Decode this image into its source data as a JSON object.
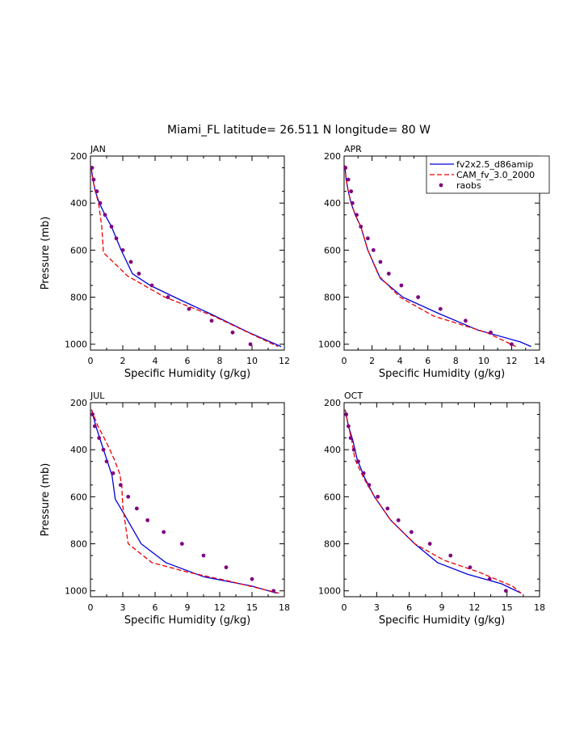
{
  "figure_title": "Miami_FL  latitude= 26.511 N longitude= 80 W",
  "legend": {
    "placement": "top-right of APR panel",
    "entries": [
      {
        "label": "fv2x2.5_d86amip",
        "color": "#0000dd",
        "style": "solid"
      },
      {
        "label": "CAM_fv_3.0_2000",
        "color": "#ee0000",
        "style": "dashed"
      },
      {
        "label": "raobs",
        "color": "#800080",
        "style": "dots"
      }
    ]
  },
  "chart_data": [
    {
      "type": "line",
      "panel": "JAN",
      "title": "JAN",
      "xlabel": "Specific Humidity (g/kg)",
      "ylabel": "Pressure (mb)",
      "xlim": [
        0,
        12
      ],
      "ylim": [
        1025,
        200
      ],
      "xticks": [
        "0",
        "2",
        "4",
        "6",
        "8",
        "10",
        "12"
      ],
      "yticks": [
        "200",
        "400",
        "600",
        "800",
        "1000"
      ],
      "series": [
        {
          "name": "fv2x2.5_d86amip",
          "style": "solid",
          "x": [
            0.05,
            0.15,
            0.3,
            0.55,
            0.9,
            1.3,
            1.9,
            2.6,
            3.7,
            5.2,
            7.4,
            9.8,
            11.8
          ],
          "y": [
            250,
            300,
            350,
            400,
            450,
            500,
            600,
            700,
            750,
            800,
            870,
            950,
            1010
          ]
        },
        {
          "name": "CAM_fv_3.0_2000",
          "style": "dashed",
          "x": [
            0.05,
            0.15,
            0.3,
            0.5,
            0.7,
            0.8,
            2.3,
            4.6,
            7.6,
            11.6
          ],
          "y": [
            250,
            300,
            350,
            400,
            500,
            610,
            710,
            800,
            880,
            1010
          ]
        },
        {
          "name": "raobs",
          "style": "dots",
          "x": [
            0.1,
            0.2,
            0.4,
            0.6,
            0.9,
            1.3,
            1.6,
            2.0,
            2.5,
            3.0,
            3.8,
            4.8,
            6.1,
            7.5,
            8.8,
            9.9
          ],
          "y": [
            250,
            300,
            350,
            400,
            450,
            500,
            550,
            600,
            650,
            700,
            750,
            800,
            850,
            900,
            950,
            1000
          ]
        }
      ]
    },
    {
      "type": "line",
      "panel": "APR",
      "title": "APR",
      "xlabel": "Specific Humidity (g/kg)",
      "ylabel": "",
      "xlim": [
        0,
        14
      ],
      "ylim": [
        1025,
        200
      ],
      "xticks": [
        "0",
        "2",
        "4",
        "6",
        "8",
        "10",
        "12",
        "14"
      ],
      "yticks": [
        "200",
        "400",
        "600",
        "800",
        "1000"
      ],
      "series": [
        {
          "name": "fv2x2.5_d86amip",
          "style": "solid",
          "x": [
            0.05,
            0.15,
            0.3,
            0.5,
            0.8,
            1.2,
            1.7,
            2.6,
            4.2,
            6.8,
            9.6,
            12.6,
            13.4
          ],
          "y": [
            240,
            300,
            350,
            400,
            450,
            500,
            600,
            720,
            800,
            870,
            940,
            990,
            1010
          ]
        },
        {
          "name": "CAM_fv_3.0_2000",
          "style": "dashed",
          "x": [
            0.05,
            0.15,
            0.3,
            0.5,
            0.8,
            1.2,
            1.7,
            2.5,
            4.0,
            6.4,
            10.2,
            12.3
          ],
          "y": [
            240,
            300,
            350,
            400,
            450,
            500,
            600,
            710,
            800,
            880,
            950,
            1010
          ]
        },
        {
          "name": "raobs",
          "style": "dots",
          "x": [
            0.1,
            0.3,
            0.5,
            0.6,
            0.9,
            1.2,
            1.7,
            2.1,
            2.6,
            3.2,
            4.1,
            5.3,
            6.9,
            8.7,
            10.5,
            12.0
          ],
          "y": [
            250,
            300,
            350,
            400,
            450,
            500,
            550,
            600,
            650,
            700,
            750,
            800,
            850,
            900,
            950,
            1000
          ]
        }
      ]
    },
    {
      "type": "line",
      "panel": "JUL",
      "title": "JUL",
      "xlabel": "Specific Humidity (g/kg)",
      "ylabel": "Pressure (mb)",
      "xlim": [
        0,
        18
      ],
      "ylim": [
        1025,
        200
      ],
      "xticks": [
        "0",
        "3",
        "6",
        "9",
        "12",
        "15",
        "18"
      ],
      "yticks": [
        "200",
        "400",
        "600",
        "800",
        "1000"
      ],
      "series": [
        {
          "name": "fv2x2.5_d86amip",
          "style": "solid",
          "x": [
            0.1,
            0.5,
            1.0,
            1.5,
            2.0,
            2.3,
            3.2,
            4.7,
            7.0,
            10.5,
            15.0,
            17.3
          ],
          "y": [
            230,
            300,
            370,
            440,
            510,
            610,
            680,
            800,
            880,
            940,
            980,
            1010
          ]
        },
        {
          "name": "CAM_fv_3.0_2000",
          "style": "dashed",
          "x": [
            0.1,
            0.7,
            1.5,
            2.2,
            2.7,
            2.9,
            3.0,
            3.5,
            5.7,
            9.0,
            13.0,
            17.5
          ],
          "y": [
            230,
            300,
            370,
            440,
            500,
            550,
            640,
            800,
            880,
            920,
            960,
            1010
          ]
        },
        {
          "name": "raobs",
          "style": "dots",
          "x": [
            0.2,
            0.4,
            0.8,
            1.2,
            1.5,
            2.1,
            2.8,
            3.5,
            4.3,
            5.3,
            6.8,
            8.5,
            10.5,
            12.6,
            15.0,
            17.0
          ],
          "y": [
            250,
            300,
            350,
            400,
            450,
            500,
            550,
            600,
            650,
            700,
            750,
            800,
            850,
            900,
            950,
            1000
          ]
        }
      ]
    },
    {
      "type": "line",
      "panel": "OCT",
      "title": "OCT",
      "xlabel": "Specific Humidity (g/kg)",
      "ylabel": "",
      "xlim": [
        0,
        18
      ],
      "ylim": [
        1025,
        200
      ],
      "xticks": [
        "0",
        "3",
        "6",
        "9",
        "12",
        "15",
        "18"
      ],
      "yticks": [
        "200",
        "400",
        "600",
        "800",
        "1000"
      ],
      "series": [
        {
          "name": "fv2x2.5_d86amip",
          "style": "solid",
          "x": [
            0.1,
            0.4,
            0.8,
            1.2,
            1.9,
            2.8,
            4.3,
            6.5,
            8.6,
            11.4,
            14.5,
            16.3
          ],
          "y": [
            230,
            300,
            360,
            440,
            520,
            600,
            700,
            800,
            880,
            930,
            970,
            1010
          ]
        },
        {
          "name": "CAM_fv_3.0_2000",
          "style": "dashed",
          "x": [
            0.1,
            0.4,
            0.7,
            1.0,
            1.8,
            2.8,
            4.3,
            6.5,
            9.2,
            12.4,
            15.5,
            16.3
          ],
          "y": [
            230,
            300,
            360,
            440,
            520,
            600,
            700,
            800,
            870,
            920,
            980,
            1010
          ]
        },
        {
          "name": "raobs",
          "style": "dots",
          "x": [
            0.2,
            0.4,
            0.6,
            0.9,
            1.3,
            1.8,
            2.3,
            3.1,
            4.0,
            5.0,
            6.2,
            7.9,
            9.8,
            11.6,
            13.4,
            14.9
          ],
          "y": [
            250,
            300,
            350,
            400,
            450,
            500,
            550,
            600,
            650,
            700,
            750,
            800,
            850,
            900,
            950,
            1000
          ]
        }
      ]
    }
  ]
}
